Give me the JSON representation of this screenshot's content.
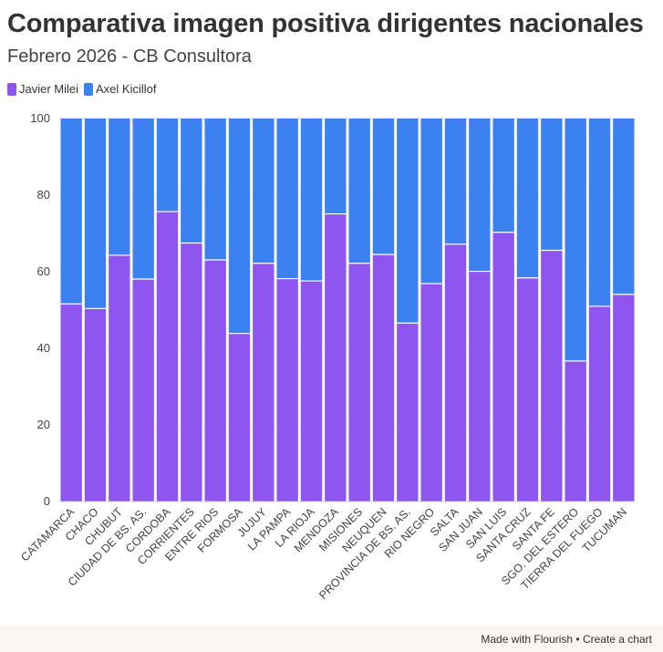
{
  "header": {
    "title": "Comparativa imagen positiva dirigentes nacionales",
    "subtitle": "Febrero 2026 - CB Consultora"
  },
  "legend": [
    {
      "name": "Javier Milei",
      "color": "#8f56ef"
    },
    {
      "name": "Axel Kicillof",
      "color": "#3b82f0"
    }
  ],
  "footer": {
    "text": "Made with Flourish • Create a chart"
  },
  "chart_data": {
    "type": "bar",
    "stacked": true,
    "title": "Comparativa imagen positiva dirigentes nacionales",
    "subtitle": "Febrero 2026 - CB Consultora",
    "xlabel": "",
    "ylabel": "",
    "ylim": [
      0,
      100
    ],
    "yticks": [
      0,
      20,
      40,
      60,
      80,
      100
    ],
    "grid": true,
    "legend_position": "top-left",
    "categories": [
      "CATAMARCA",
      "CHACO",
      "CHUBUT",
      "CIUDAD DE BS. AS.",
      "CORDOBA",
      "CORRIENTES",
      "ENTRE RIOS",
      "FORMOSA",
      "JUJUY",
      "LA PAMPA",
      "LA RIOJA",
      "MENDOZA",
      "MISIONES",
      "NEUQUEN",
      "PROVINCIA DE BS. AS.",
      "RIO NEGRO",
      "SALTA",
      "SAN JUAN",
      "SAN LUIS",
      "SANTA CRUZ",
      "SANTA FE",
      "SGO. DEL ESTERO",
      "TIERRA DEL FUEGO",
      "TUCUMAN"
    ],
    "series": [
      {
        "name": "Javier Milei",
        "color": "#8f56ef",
        "values": [
          51.6,
          50.4,
          64.3,
          58.1,
          75.7,
          67.5,
          63.1,
          43.9,
          62.2,
          58.2,
          57.6,
          75.1,
          62.2,
          64.5,
          46.6,
          56.9,
          67.2,
          60.1,
          70.3,
          58.4,
          65.6,
          36.7,
          51.0,
          54.1
        ]
      },
      {
        "name": "Axel Kicillof",
        "color": "#3b82f0",
        "values": [
          48.4,
          49.6,
          35.7,
          41.9,
          24.3,
          32.5,
          36.9,
          56.1,
          37.8,
          41.8,
          42.4,
          24.9,
          37.8,
          35.5,
          53.4,
          43.1,
          32.8,
          39.9,
          29.7,
          41.6,
          34.4,
          63.3,
          49.0,
          45.9
        ]
      }
    ]
  }
}
